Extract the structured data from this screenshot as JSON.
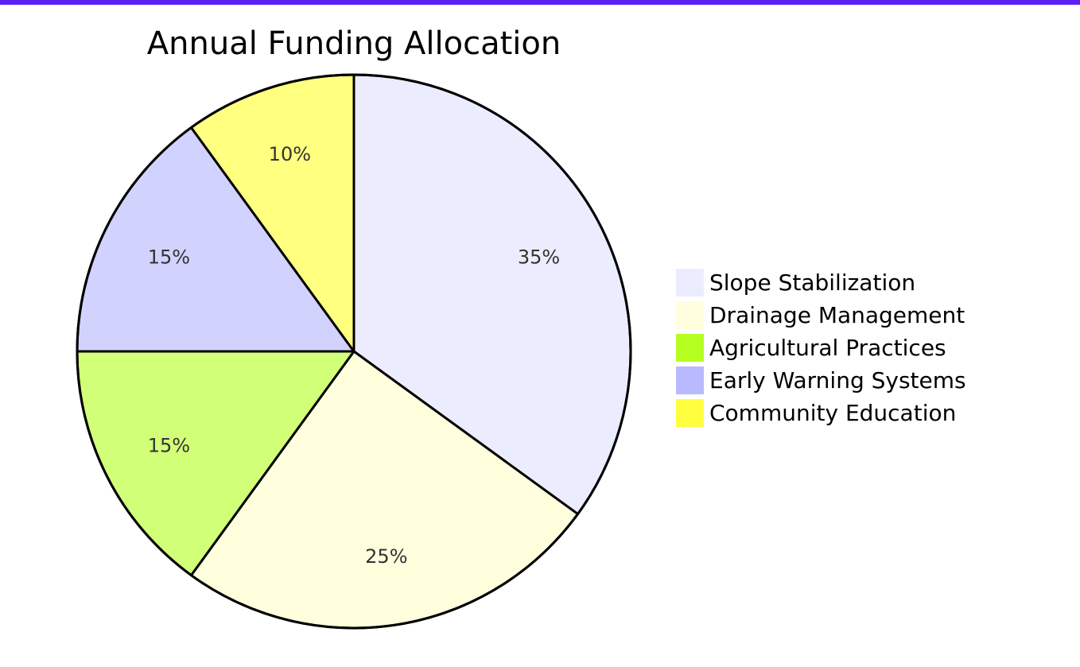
{
  "chart_data": {
    "type": "pie",
    "title": "Annual Funding Allocation",
    "slices": [
      {
        "label": "Slope Stabilization",
        "value": 35,
        "display": "35%",
        "color": "#ECECFF",
        "legend_color": "#ECECFF"
      },
      {
        "label": "Drainage Management",
        "value": 25,
        "display": "25%",
        "color": "#FFFFDE",
        "legend_color": "#FFFFDE"
      },
      {
        "label": "Agricultural Practices",
        "value": 15,
        "display": "15%",
        "color": "#D2FF78",
        "legend_color": "#B5FF20"
      },
      {
        "label": "Early Warning Systems",
        "value": 15,
        "display": "15%",
        "color": "#D2D2FF",
        "legend_color": "#B9B9FF"
      },
      {
        "label": "Community Education",
        "value": 10,
        "display": "10%",
        "color": "#FFFF80",
        "legend_color": "#FFFF40"
      }
    ],
    "legend_position": "right",
    "start_angle": "top",
    "direction": "clockwise"
  },
  "colors": {
    "accent_bar": "#5B1EF5",
    "outline": "#000000"
  }
}
